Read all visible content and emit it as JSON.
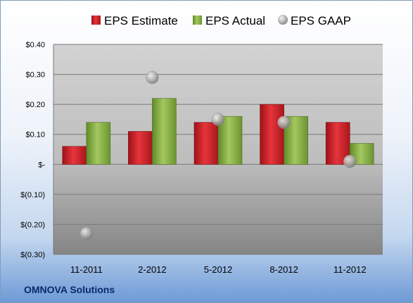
{
  "company": "OMNOVA Solutions",
  "colors": {
    "estimate": "#cc1f26",
    "actual": "#8ab045",
    "gaap": "#b8b8b8"
  },
  "chart_data": {
    "type": "bar",
    "categories": [
      "11-2011",
      "2-2012",
      "5-2012",
      "8-2012",
      "11-2012"
    ],
    "series": [
      {
        "name": "EPS Estimate",
        "type": "bar",
        "values": [
          0.06,
          0.11,
          0.14,
          0.2,
          0.14
        ]
      },
      {
        "name": "EPS Actual",
        "type": "bar",
        "values": [
          0.14,
          0.22,
          0.16,
          0.16,
          0.07
        ]
      },
      {
        "name": "EPS GAAP",
        "type": "scatter",
        "values": [
          -0.23,
          0.29,
          0.15,
          0.14,
          0.01
        ]
      }
    ],
    "ylim": [
      -0.3,
      0.4
    ],
    "yticks": [
      0.4,
      0.3,
      0.2,
      0.1,
      0.0,
      -0.1,
      -0.2,
      -0.3
    ],
    "ytick_labels": [
      "$0.40",
      "$0.30",
      "$0.20",
      "$0.10",
      "$-",
      "$(0.10)",
      "$(0.20)",
      "$(0.30)"
    ],
    "legend_position": "top",
    "grid": true
  }
}
